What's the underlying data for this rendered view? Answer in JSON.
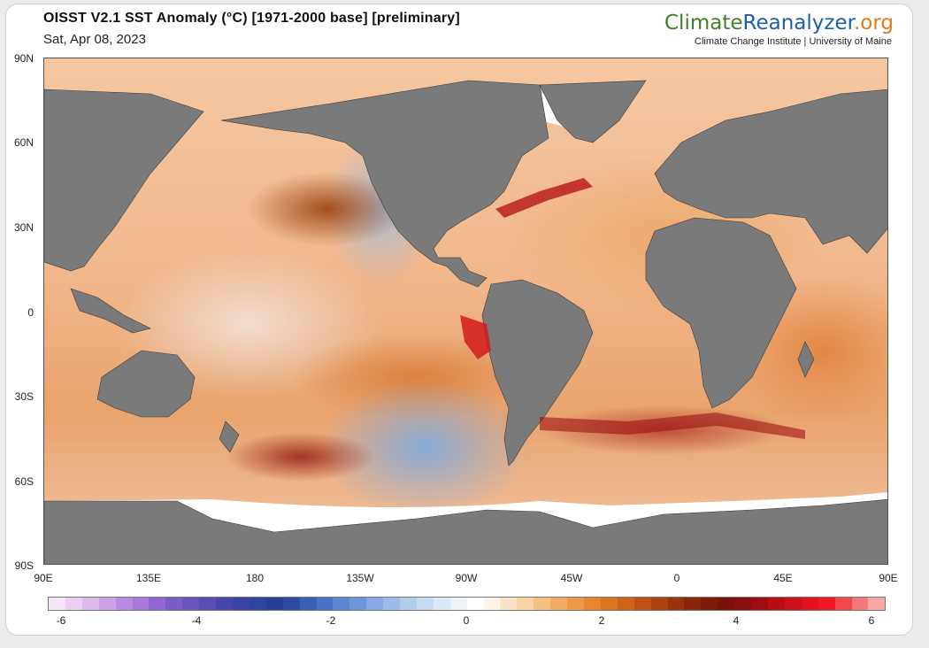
{
  "header": {
    "title": "OISST V2.1 SST Anomaly (°C) [1971-2000 base] [preliminary]",
    "date": "Sat, Apr 08, 2023"
  },
  "brand": {
    "part1": "Climate",
    "part2": "Reanalyzer",
    "part3": ".org",
    "subtitle": "Climate Change Institute | University of Maine",
    "colors": {
      "climate": "#3f7f2a",
      "reanalyzer": "#1f5fa8",
      "org": "#e07a1b"
    }
  },
  "map": {
    "land_color": "#7a7a7a",
    "ice_color": "#ffffff",
    "lat_labels": [
      "90N",
      "60N",
      "30N",
      "0",
      "30S",
      "60S",
      "90S"
    ],
    "lon_labels": [
      "90E",
      "135E",
      "180",
      "135W",
      "90W",
      "45W",
      "0",
      "45E",
      "90E"
    ]
  },
  "colorbar": {
    "labels": [
      "-6",
      "-4",
      "-2",
      "0",
      "2",
      "4",
      "6"
    ],
    "colors": [
      "#f7e6f7",
      "#ecd0f2",
      "#dfb8ee",
      "#cfa0ea",
      "#bc8ae2",
      "#a878da",
      "#9068cf",
      "#7c5cc6",
      "#6a55bf",
      "#5a4db8",
      "#4846ae",
      "#3a44a6",
      "#2f44a0",
      "#2a3f96",
      "#2d4ca6",
      "#3a5fb8",
      "#4a72c6",
      "#5c86d2",
      "#6f98dc",
      "#85aae4",
      "#9cbdeb",
      "#b2ceef",
      "#c7dcf3",
      "#dbe8f6",
      "#eef3f9",
      "#ffffff",
      "#fdf3e8",
      "#fbe3c8",
      "#f9d2a6",
      "#f6bf84",
      "#f3ac64",
      "#ee9947",
      "#e7862f",
      "#dd741f",
      "#cf6318",
      "#bf5213",
      "#ad420f",
      "#9b340c",
      "#8b260a",
      "#7e1a08",
      "#7a1208",
      "#8a0e0b",
      "#a00d10",
      "#b80d15",
      "#cf0f1a",
      "#e2121f",
      "#f21823",
      "#f4474c",
      "#f5787a",
      "#f7a6a6"
    ]
  }
}
